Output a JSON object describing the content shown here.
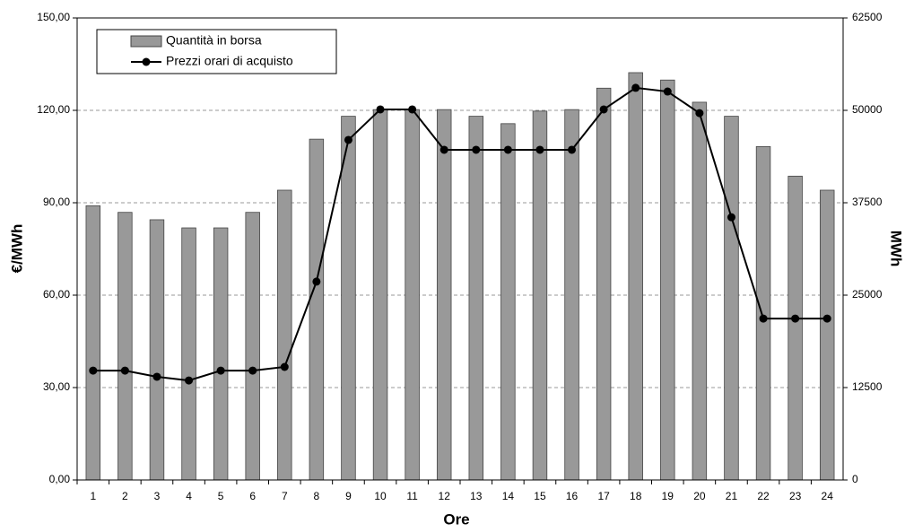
{
  "chart_data": {
    "type": "bar-line",
    "categories": [
      "1",
      "2",
      "3",
      "4",
      "5",
      "6",
      "7",
      "8",
      "9",
      "10",
      "11",
      "12",
      "13",
      "14",
      "15",
      "16",
      "17",
      "18",
      "19",
      "20",
      "21",
      "22",
      "23",
      "24"
    ],
    "x_label": "Ore",
    "y_label": "€/MWh",
    "y2_label": "MWh",
    "ylim": [
      0,
      150
    ],
    "yticks": [
      {
        "value": 0,
        "label": "0,00"
      },
      {
        "value": 30,
        "label": "30,00"
      },
      {
        "value": 60,
        "label": "60,00"
      },
      {
        "value": 90,
        "label": "90,00"
      },
      {
        "value": 120,
        "label": "120,00"
      },
      {
        "value": 150,
        "label": "150,00"
      }
    ],
    "y2lim": [
      0,
      62500
    ],
    "y2ticks": [
      0,
      12500,
      25000,
      37500,
      50000,
      62500
    ],
    "grid": true,
    "legend": "top-left",
    "series": [
      {
        "name": "Quantità in borsa",
        "type": "bar",
        "axis": "y2",
        "color": "#999999",
        "values": [
          37100,
          36200,
          35200,
          34100,
          34100,
          36200,
          39200,
          46100,
          49200,
          50100,
          50100,
          50100,
          49200,
          48200,
          49900,
          50100,
          53000,
          55100,
          54100,
          51100,
          49200,
          45100,
          41100,
          39200
        ]
      },
      {
        "name": "Prezzi orari di acquisto",
        "type": "line",
        "axis": "y",
        "color": "#000000",
        "values": [
          35.5,
          35.5,
          33.5,
          32.3,
          35.5,
          35.5,
          36.7,
          64.4,
          110.4,
          120.3,
          120.3,
          107.2,
          107.2,
          107.2,
          107.2,
          107.2,
          120.3,
          127.3,
          126.1,
          119.1,
          85.3,
          52.4,
          52.4,
          52.4
        ]
      }
    ]
  }
}
